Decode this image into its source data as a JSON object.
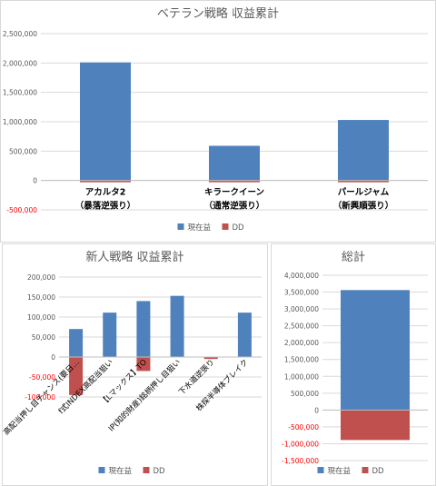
{
  "colors": {
    "profit": "#4f81bd",
    "dd": "#c0504d",
    "grid": "#d9d9d9",
    "axis_text": "#595959",
    "negative_text": "#ff0000",
    "title_text": "#595959",
    "category_text": "#000000"
  },
  "chart_data": [
    {
      "id": "veteran",
      "type": "bar",
      "title": "ベテラン戦略 収益累計",
      "categories": [
        [
          "アカルタ2",
          "（暴落逆張り）"
        ],
        [
          "キラークイーン",
          "（通常逆張り）"
        ],
        [
          "パールジャム",
          "（新興順張り）"
        ]
      ],
      "series": [
        {
          "name": "現在益",
          "values": [
            2010000,
            590000,
            1030000
          ]
        },
        {
          "name": "DD",
          "values": [
            -30000,
            -30000,
            -30000
          ]
        }
      ],
      "ylim": [
        -500000,
        2500000
      ],
      "yticks": [
        -500000,
        0,
        500000,
        1000000,
        1500000,
        2000000,
        2500000
      ],
      "ytick_labels": [
        "-500,000",
        "0",
        "500,000",
        "1,000,000",
        "1,500,000",
        "2,000,000",
        "2,500,000"
      ],
      "grid": true,
      "legend": "bottom"
    },
    {
      "id": "newbie",
      "type": "bar",
      "title": "新人戦略 収益累計",
      "categories": [
        "高配当押し目チャンス(要日…",
        "f式INDEX高配当狙い",
        "【Lマックス】TO",
        "IP(知的財産)銘柄押し目狙い",
        "下水道逆張り",
        "株探半導体ブレイク"
      ],
      "series": [
        {
          "name": "現在益",
          "values": [
            70000,
            111000,
            140000,
            153000,
            0,
            111000
          ]
        },
        {
          "name": "DD",
          "values": [
            -95000,
            0,
            -35000,
            0,
            -5000,
            0
          ]
        }
      ],
      "ylim": [
        -100000,
        200000
      ],
      "yticks": [
        -100000,
        -50000,
        0,
        50000,
        100000,
        150000,
        200000
      ],
      "ytick_labels": [
        "-100,000",
        "-50,000",
        "0",
        "50,000",
        "100,000",
        "150,000",
        "200,000"
      ],
      "grid": true,
      "legend": "bottom"
    },
    {
      "id": "total",
      "type": "bar",
      "title": "総計",
      "categories": [
        ""
      ],
      "series": [
        {
          "name": "現在益",
          "values": [
            3560000
          ]
        },
        {
          "name": "DD",
          "values": [
            -890000
          ]
        }
      ],
      "ylim": [
        -1500000,
        4000000
      ],
      "yticks": [
        -1500000,
        -1000000,
        -500000,
        0,
        500000,
        1000000,
        1500000,
        2000000,
        2500000,
        3000000,
        3500000,
        4000000
      ],
      "ytick_labels": [
        "-1,500,000",
        "-1,000,000",
        "-500,000",
        "0",
        "500,000",
        "1,000,000",
        "1,500,000",
        "2,000,000",
        "2,500,000",
        "3,000,000",
        "3,500,000",
        "4,000,000"
      ],
      "grid": true,
      "legend": "bottom"
    }
  ]
}
